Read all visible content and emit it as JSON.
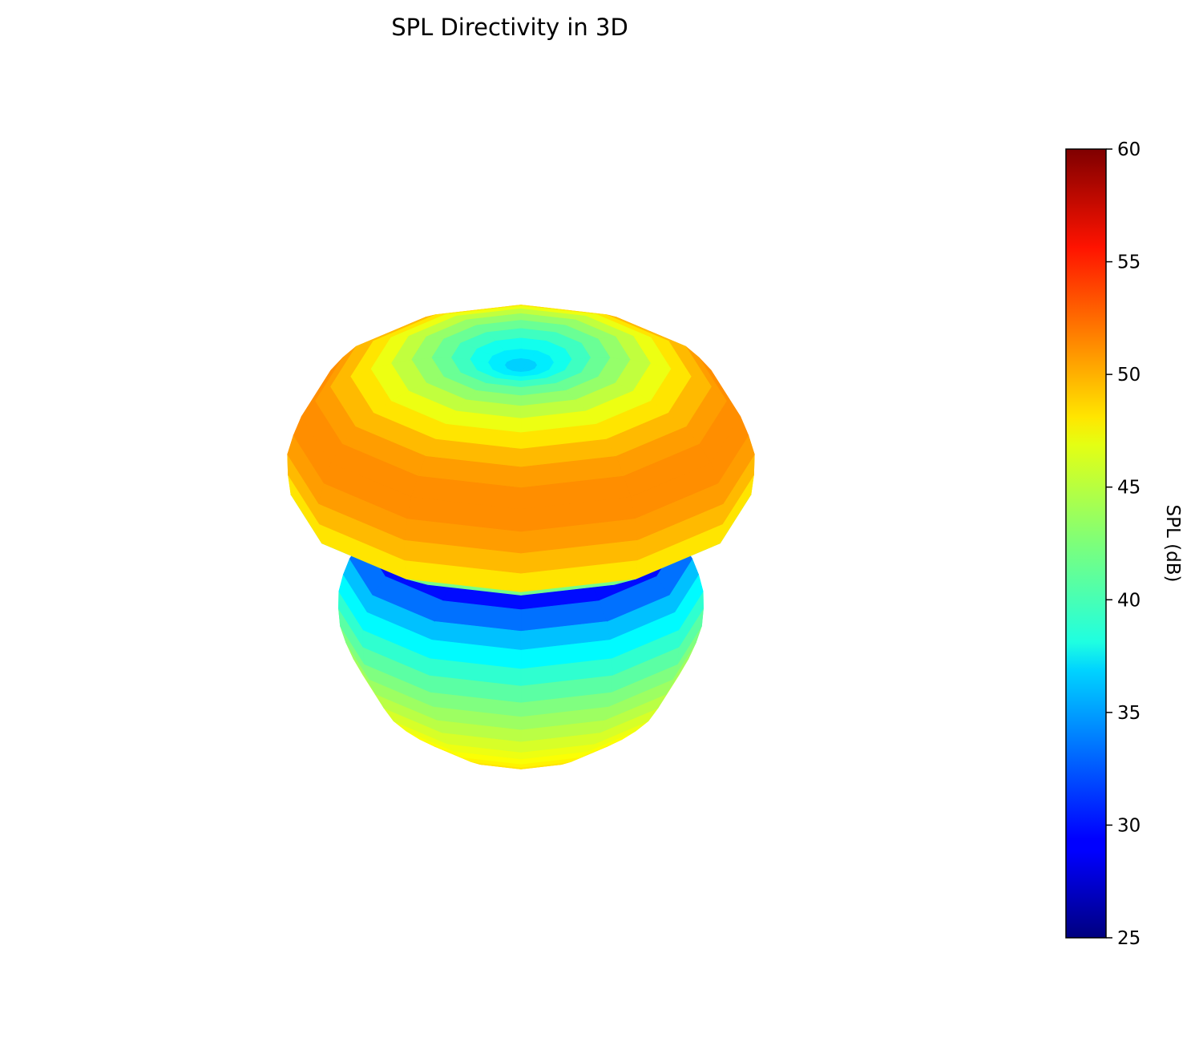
{
  "chart_data": {
    "type": "surface3d",
    "title": "SPL Directivity in 3D",
    "colormap": "jet",
    "colorbar": {
      "label": "SPL (dB)",
      "range": [
        25,
        60
      ],
      "ticks": [
        "25",
        "30",
        "35",
        "40",
        "45",
        "50",
        "55",
        "60"
      ]
    },
    "directivity": {
      "theta_deg": [
        0,
        10,
        20,
        30,
        40,
        50,
        60,
        70,
        80,
        90,
        100,
        110,
        120,
        130,
        140,
        150,
        160,
        170,
        180
      ],
      "spl_db": [
        36,
        38,
        41,
        44,
        47,
        50,
        51,
        50,
        47,
        28,
        35,
        39,
        42,
        44,
        46,
        47,
        48,
        49,
        49
      ]
    },
    "axes_visible": false
  }
}
